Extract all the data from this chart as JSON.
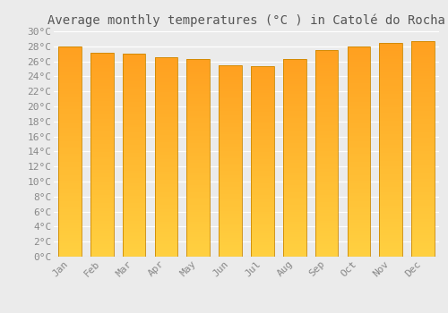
{
  "title": "Average monthly temperatures (°C ) in Catolé do Rocha",
  "months": [
    "Jan",
    "Feb",
    "Mar",
    "Apr",
    "May",
    "Jun",
    "Jul",
    "Aug",
    "Sep",
    "Oct",
    "Nov",
    "Dec"
  ],
  "temperatures": [
    28.0,
    27.2,
    27.0,
    26.5,
    26.3,
    25.5,
    25.3,
    26.3,
    27.5,
    28.0,
    28.4,
    28.7
  ],
  "bar_color_bottom": "#FFD040",
  "bar_color_top": "#FFA020",
  "bar_edge_color": "#CC8800",
  "ytick_step": 2,
  "ymin": 0,
  "ymax": 30,
  "background_color": "#ebebeb",
  "grid_color": "#ffffff",
  "title_fontsize": 10,
  "tick_fontsize": 8
}
